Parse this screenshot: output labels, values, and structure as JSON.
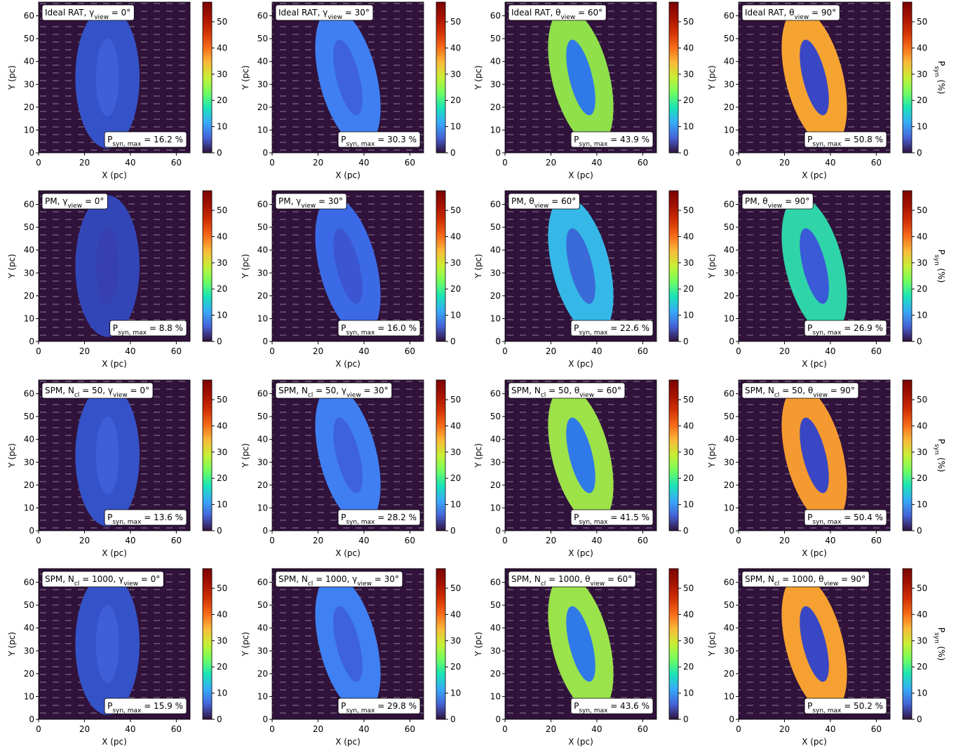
{
  "chart_data": [
    {
      "type": "heatmap",
      "title": [
        "Ideal RAT, γ",
        "view",
        " = 0°"
      ],
      "annotation": [
        "P",
        "syn, max",
        " = 16.2 %"
      ],
      "xlabel": "X (pc)",
      "ylabel": "Y (pc)",
      "xlim": [
        0,
        66
      ],
      "ylim": [
        0,
        66
      ],
      "xticks": [
        0,
        20,
        40,
        60
      ],
      "yticks": [
        0,
        10,
        20,
        30,
        40,
        50,
        60
      ],
      "clim": [
        0,
        57.5
      ],
      "cticks": [
        0,
        10,
        20,
        30,
        40,
        50
      ]
    },
    {
      "type": "heatmap",
      "title": [
        "Ideal RAT, γ",
        "view",
        " = 30°"
      ],
      "annotation": [
        "P",
        "syn, max",
        " = 30.3 %"
      ],
      "xlabel": "X (pc)",
      "ylabel": "Y (pc)",
      "xlim": [
        0,
        66
      ],
      "ylim": [
        0,
        66
      ],
      "xticks": [
        0,
        20,
        40,
        60
      ],
      "yticks": [
        0,
        10,
        20,
        30,
        40,
        50,
        60
      ],
      "clim": [
        0,
        57.5
      ],
      "cticks": [
        0,
        10,
        20,
        30,
        40,
        50
      ]
    },
    {
      "type": "heatmap",
      "title": [
        "Ideal RAT, θ",
        "view",
        " = 60°"
      ],
      "annotation": [
        "P",
        "syn, max",
        " = 43.9 %"
      ],
      "xlabel": "X (pc)",
      "ylabel": "Y (pc)",
      "xlim": [
        0,
        66
      ],
      "ylim": [
        0,
        66
      ],
      "xticks": [
        0,
        20,
        40,
        60
      ],
      "yticks": [
        0,
        10,
        20,
        30,
        40,
        50,
        60
      ],
      "clim": [
        0,
        57.5
      ],
      "cticks": [
        0,
        10,
        20,
        30,
        40,
        50
      ]
    },
    {
      "type": "heatmap",
      "title": [
        "Ideal RAT, θ",
        "view",
        " = 90°"
      ],
      "annotation": [
        "P",
        "syn, max",
        " = 50.8 %"
      ],
      "xlabel": "X (pc)",
      "ylabel": "Y (pc)",
      "xlim": [
        0,
        66
      ],
      "ylim": [
        0,
        66
      ],
      "xticks": [
        0,
        20,
        40,
        60
      ],
      "yticks": [
        0,
        10,
        20,
        30,
        40,
        50,
        60
      ],
      "clim": [
        0,
        57.5
      ],
      "cticks": [
        0,
        10,
        20,
        30,
        40,
        50
      ],
      "colorbar_label": [
        "P",
        "syn",
        " (%)"
      ]
    },
    {
      "type": "heatmap",
      "title": [
        "PM, γ",
        "view",
        " = 0°"
      ],
      "annotation": [
        "P",
        "syn, max",
        " = 8.8 %"
      ],
      "xlabel": "X (pc)",
      "ylabel": "Y (pc)",
      "xlim": [
        0,
        66
      ],
      "ylim": [
        0,
        66
      ],
      "xticks": [
        0,
        20,
        40,
        60
      ],
      "yticks": [
        0,
        10,
        20,
        30,
        40,
        50,
        60
      ],
      "clim": [
        0,
        57.5
      ],
      "cticks": [
        0,
        10,
        20,
        30,
        40,
        50
      ]
    },
    {
      "type": "heatmap",
      "title": [
        "PM, γ",
        "view",
        " = 30°"
      ],
      "annotation": [
        "P",
        "syn, max",
        " = 16.0 %"
      ],
      "xlabel": "X (pc)",
      "ylabel": "Y (pc)",
      "xlim": [
        0,
        66
      ],
      "ylim": [
        0,
        66
      ],
      "xticks": [
        0,
        20,
        40,
        60
      ],
      "yticks": [
        0,
        10,
        20,
        30,
        40,
        50,
        60
      ],
      "clim": [
        0,
        57.5
      ],
      "cticks": [
        0,
        10,
        20,
        30,
        40,
        50
      ]
    },
    {
      "type": "heatmap",
      "title": [
        "PM, θ",
        "view",
        " = 60°"
      ],
      "annotation": [
        "P",
        "syn, max",
        " = 22.6 %"
      ],
      "xlabel": "X (pc)",
      "ylabel": "Y (pc)",
      "xlim": [
        0,
        66
      ],
      "ylim": [
        0,
        66
      ],
      "xticks": [
        0,
        20,
        40,
        60
      ],
      "yticks": [
        0,
        10,
        20,
        30,
        40,
        50,
        60
      ],
      "clim": [
        0,
        57.5
      ],
      "cticks": [
        0,
        10,
        20,
        30,
        40,
        50
      ]
    },
    {
      "type": "heatmap",
      "title": [
        "PM, θ",
        "view",
        " = 90°"
      ],
      "annotation": [
        "P",
        "syn, max",
        " = 26.9 %"
      ],
      "xlabel": "X (pc)",
      "ylabel": "Y (pc)",
      "xlim": [
        0,
        66
      ],
      "ylim": [
        0,
        66
      ],
      "xticks": [
        0,
        20,
        40,
        60
      ],
      "yticks": [
        0,
        10,
        20,
        30,
        40,
        50,
        60
      ],
      "clim": [
        0,
        57.5
      ],
      "cticks": [
        0,
        10,
        20,
        30,
        40,
        50
      ],
      "colorbar_label": [
        "P",
        "syn",
        " (%)"
      ]
    },
    {
      "type": "heatmap",
      "title": [
        "SPM, N",
        "cl",
        " = 50, γ",
        "view",
        " = 0°"
      ],
      "annotation": [
        "P",
        "syn, max",
        " = 13.6 %"
      ],
      "xlabel": "X (pc)",
      "ylabel": "Y (pc)",
      "xlim": [
        0,
        66
      ],
      "ylim": [
        0,
        66
      ],
      "xticks": [
        0,
        20,
        40,
        60
      ],
      "yticks": [
        0,
        10,
        20,
        30,
        40,
        50,
        60
      ],
      "clim": [
        0,
        57.5
      ],
      "cticks": [
        0,
        10,
        20,
        30,
        40,
        50
      ]
    },
    {
      "type": "heatmap",
      "title": [
        "SPM, N",
        "cl",
        " = 50, γ",
        "view",
        " = 30°"
      ],
      "annotation": [
        "P",
        "syn, max",
        " = 28.2 %"
      ],
      "xlabel": "X (pc)",
      "ylabel": "Y (pc)",
      "xlim": [
        0,
        66
      ],
      "ylim": [
        0,
        66
      ],
      "xticks": [
        0,
        20,
        40,
        60
      ],
      "yticks": [
        0,
        10,
        20,
        30,
        40,
        50,
        60
      ],
      "clim": [
        0,
        57.5
      ],
      "cticks": [
        0,
        10,
        20,
        30,
        40,
        50
      ]
    },
    {
      "type": "heatmap",
      "title": [
        "SPM, N",
        "cl",
        " = 50, θ",
        "view",
        " = 60°"
      ],
      "annotation": [
        "P",
        "syn, max",
        " = 41.5 %"
      ],
      "xlabel": "X (pc)",
      "ylabel": "Y (pc)",
      "xlim": [
        0,
        66
      ],
      "ylim": [
        0,
        66
      ],
      "xticks": [
        0,
        20,
        40,
        60
      ],
      "yticks": [
        0,
        10,
        20,
        30,
        40,
        50,
        60
      ],
      "clim": [
        0,
        57.5
      ],
      "cticks": [
        0,
        10,
        20,
        30,
        40,
        50
      ]
    },
    {
      "type": "heatmap",
      "title": [
        "SPM, N",
        "cl",
        " = 50, θ",
        "view",
        " = 90°"
      ],
      "annotation": [
        "P",
        "syn, max",
        " = 50.4 %"
      ],
      "xlabel": "X (pc)",
      "ylabel": "Y (pc)",
      "xlim": [
        0,
        66
      ],
      "ylim": [
        0,
        66
      ],
      "xticks": [
        0,
        20,
        40,
        60
      ],
      "yticks": [
        0,
        10,
        20,
        30,
        40,
        50,
        60
      ],
      "clim": [
        0,
        57.5
      ],
      "cticks": [
        0,
        10,
        20,
        30,
        40,
        50
      ],
      "colorbar_label": [
        "P",
        "syn",
        " (%)"
      ]
    },
    {
      "type": "heatmap",
      "title": [
        "SPM, N",
        "cl",
        " = 1000, γ",
        "view",
        " = 0°"
      ],
      "annotation": [
        "P",
        "syn, max",
        " = 15.9 %"
      ],
      "xlabel": "X (pc)",
      "ylabel": "Y (pc)",
      "xlim": [
        0,
        66
      ],
      "ylim": [
        0,
        66
      ],
      "xticks": [
        0,
        20,
        40,
        60
      ],
      "yticks": [
        0,
        10,
        20,
        30,
        40,
        50,
        60
      ],
      "clim": [
        0,
        57.5
      ],
      "cticks": [
        0,
        10,
        20,
        30,
        40,
        50
      ]
    },
    {
      "type": "heatmap",
      "title": [
        "SPM, N",
        "cl",
        " = 1000, γ",
        "view",
        " = 30°"
      ],
      "annotation": [
        "P",
        "syn, max",
        " = 29.8 %"
      ],
      "xlabel": "X (pc)",
      "ylabel": "Y (pc)",
      "xlim": [
        0,
        66
      ],
      "ylim": [
        0,
        66
      ],
      "xticks": [
        0,
        20,
        40,
        60
      ],
      "yticks": [
        0,
        10,
        20,
        30,
        40,
        50,
        60
      ],
      "clim": [
        0,
        57.5
      ],
      "cticks": [
        0,
        10,
        20,
        30,
        40,
        50
      ]
    },
    {
      "type": "heatmap",
      "title": [
        "SPM, N",
        "cl",
        " = 1000, θ",
        "view",
        " = 60°"
      ],
      "annotation": [
        "P",
        "syn, max",
        " = 43.6 %"
      ],
      "xlabel": "X (pc)",
      "ylabel": "Y (pc)",
      "xlim": [
        0,
        66
      ],
      "ylim": [
        0,
        66
      ],
      "xticks": [
        0,
        20,
        40,
        60
      ],
      "yticks": [
        0,
        10,
        20,
        30,
        40,
        50,
        60
      ],
      "clim": [
        0,
        57.5
      ],
      "cticks": [
        0,
        10,
        20,
        30,
        40,
        50
      ]
    },
    {
      "type": "heatmap",
      "title": [
        "SPM, N",
        "cl",
        " = 1000, θ",
        "view",
        " = 90°"
      ],
      "annotation": [
        "P",
        "syn, max",
        " = 50.2 %"
      ],
      "xlabel": "X (pc)",
      "ylabel": "Y (pc)",
      "xlim": [
        0,
        66
      ],
      "ylim": [
        0,
        66
      ],
      "xticks": [
        0,
        20,
        40,
        60
      ],
      "yticks": [
        0,
        10,
        20,
        30,
        40,
        50,
        60
      ],
      "clim": [
        0,
        57.5
      ],
      "cticks": [
        0,
        10,
        20,
        30,
        40,
        50
      ],
      "colorbar_label": [
        "P",
        "syn",
        " (%)"
      ]
    }
  ]
}
